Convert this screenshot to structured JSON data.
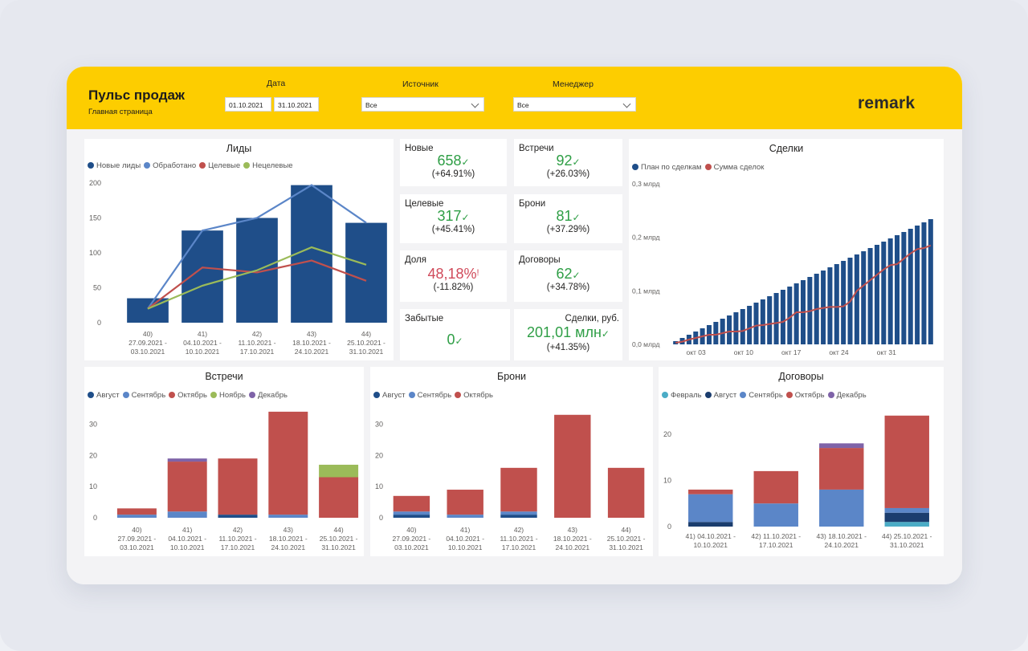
{
  "header": {
    "title": "Пульс продаж",
    "subtitle": "Главная страница",
    "logo": "remark",
    "filters": {
      "date_label": "Дата",
      "date_from": "01.10.2021",
      "date_to": "31.10.2021",
      "source_label": "Источник",
      "source_value": "Все",
      "manager_label": "Менеджер",
      "manager_value": "Все"
    }
  },
  "colors": {
    "navy": "#1f4e89",
    "blue": "#5b86c8",
    "red": "#c0504d",
    "green": "#9bbb59",
    "purple": "#7f63a8",
    "teal": "#4bacc6",
    "darknavy": "#1b3d6e",
    "kpi_green": "#2e9e45",
    "kpi_red": "#d04a5a"
  },
  "kpis": [
    {
      "label": "Новые",
      "value": "658",
      "delta": "(+64.91%)",
      "status": "good"
    },
    {
      "label": "Встречи",
      "value": "92",
      "delta": "(+26.03%)",
      "status": "good"
    },
    {
      "label": "Целевые",
      "value": "317",
      "delta": "(+45.41%)",
      "status": "good"
    },
    {
      "label": "Брони",
      "value": "81",
      "delta": "(+37.29%)",
      "status": "good"
    },
    {
      "label": "Доля",
      "value": "48,18%",
      "delta": "(-11.82%)",
      "status": "bad"
    },
    {
      "label": "Договоры",
      "value": "62",
      "delta": "(+34.78%)",
      "status": "good"
    },
    {
      "label": "Забытые",
      "value": "0",
      "delta": "",
      "status": "good"
    },
    {
      "label": "Сделки, руб.",
      "value": "201,01 млн",
      "delta": "(+41.35%)",
      "status": "good"
    }
  ],
  "chart_data": [
    {
      "id": "leads",
      "type": "bar",
      "title": "Лиды",
      "categories": [
        "40) 27.09.2021 - 03.10.2021",
        "41) 04.10.2021 - 10.10.2021",
        "42) 11.10.2021 - 17.10.2021",
        "43) 18.10.2021 - 24.10.2021",
        "44) 25.10.2021 - 31.10.2021"
      ],
      "category_lines": [
        [
          "40)",
          "27.09.2021 -",
          "03.10.2021"
        ],
        [
          "41)",
          "04.10.2021 -",
          "10.10.2021"
        ],
        [
          "42)",
          "11.10.2021 -",
          "17.10.2021"
        ],
        [
          "43)",
          "18.10.2021 -",
          "24.10.2021"
        ],
        [
          "44)",
          "25.10.2021 -",
          "31.10.2021"
        ]
      ],
      "series": [
        {
          "name": "Новые лиды",
          "kind": "bar",
          "color": "#1f4e89",
          "values": [
            35,
            132,
            150,
            197,
            143
          ]
        },
        {
          "name": "Обработано",
          "kind": "line",
          "color": "#5b86c8",
          "values": [
            20,
            132,
            150,
            197,
            143
          ]
        },
        {
          "name": "Целевые",
          "kind": "line",
          "color": "#c0504d",
          "values": [
            20,
            79,
            72,
            89,
            60
          ]
        },
        {
          "name": "Нецелевые",
          "kind": "line",
          "color": "#9bbb59",
          "values": [
            20,
            53,
            75,
            108,
            83
          ]
        }
      ],
      "yticks": [
        "200",
        "150",
        "100",
        "50",
        "0"
      ],
      "ylim": [
        0,
        200
      ],
      "legend": "top-left"
    },
    {
      "id": "deals",
      "type": "bar",
      "title": "Сделки",
      "series": [
        {
          "name": "План по сделкам",
          "kind": "bar",
          "color": "#1f4e89",
          "values": [
            6,
            12,
            18,
            24,
            30,
            36,
            42,
            48,
            54,
            60,
            66,
            72,
            78,
            84,
            90,
            96,
            102,
            108,
            114,
            120,
            126,
            132,
            138,
            144,
            150,
            156,
            162,
            168,
            174,
            180,
            186,
            192,
            198,
            204,
            210,
            216,
            222,
            228,
            234
          ]
        },
        {
          "name": "Сумма сделок",
          "kind": "line",
          "color": "#c0504d",
          "values": [
            3,
            5,
            9,
            12,
            15,
            18,
            18,
            21,
            24,
            24,
            25,
            30,
            35,
            36,
            38,
            40,
            42,
            50,
            60,
            60,
            62,
            66,
            68,
            70,
            70,
            71,
            80,
            100,
            110,
            120,
            130,
            140,
            148,
            150,
            160,
            170,
            178,
            180,
            185
          ]
        },
        {
          "name": "",
          "kind": "unused",
          "color": "#1f4e89",
          "values": []
        }
      ],
      "yticks": [
        "0,3 млрд",
        "0,2 млрд",
        "0,1 млрд",
        "0,0 млрд"
      ],
      "ylim": [
        0,
        300
      ],
      "xticks": [
        "окт 03",
        "окт 10",
        "окт 17",
        "окт 24",
        "окт 31"
      ],
      "legend": "top-left"
    },
    {
      "id": "meetings",
      "type": "bar",
      "title": "Встречи",
      "stacked": true,
      "category_lines": [
        [
          "40)",
          "27.09.2021 -",
          "03.10.2021"
        ],
        [
          "41)",
          "04.10.2021 -",
          "10.10.2021"
        ],
        [
          "42)",
          "11.10.2021 -",
          "17.10.2021"
        ],
        [
          "43)",
          "18.10.2021 -",
          "24.10.2021"
        ],
        [
          "44)",
          "25.10.2021 -",
          "31.10.2021"
        ]
      ],
      "series": [
        {
          "name": "Август",
          "color": "#1f4e89",
          "values": [
            0,
            0,
            1,
            0,
            0
          ]
        },
        {
          "name": "Сентябрь",
          "color": "#5b86c8",
          "values": [
            1,
            2,
            0,
            1,
            0
          ]
        },
        {
          "name": "Октябрь",
          "color": "#c0504d",
          "values": [
            2,
            16,
            18,
            33,
            13
          ]
        },
        {
          "name": "Ноябрь",
          "color": "#9bbb59",
          "values": [
            0,
            0,
            0,
            0,
            4
          ]
        },
        {
          "name": "Декабрь",
          "color": "#7f63a8",
          "values": [
            0,
            1,
            0,
            0,
            0
          ]
        }
      ],
      "yticks": [
        "30",
        "20",
        "10",
        "0"
      ],
      "ylim": [
        0,
        35
      ],
      "legend": "top-left"
    },
    {
      "id": "bookings",
      "type": "bar",
      "title": "Брони",
      "stacked": true,
      "category_lines": [
        [
          "40)",
          "27.09.2021 -",
          "03.10.2021"
        ],
        [
          "41)",
          "04.10.2021 -",
          "10.10.2021"
        ],
        [
          "42)",
          "11.10.2021 -",
          "17.10.2021"
        ],
        [
          "43)",
          "18.10.2021 -",
          "24.10.2021"
        ],
        [
          "44)",
          "25.10.2021 -",
          "31.10.2021"
        ]
      ],
      "series": [
        {
          "name": "Август",
          "color": "#1f4e89",
          "values": [
            1,
            0,
            1,
            0,
            0
          ]
        },
        {
          "name": "Сентябрь",
          "color": "#5b86c8",
          "values": [
            1,
            1,
            1,
            0,
            0
          ]
        },
        {
          "name": "Октябрь",
          "color": "#c0504d",
          "values": [
            5,
            8,
            14,
            33,
            16
          ]
        }
      ],
      "yticks": [
        "30",
        "20",
        "10",
        "0"
      ],
      "ylim": [
        0,
        35
      ],
      "legend": "top-left"
    },
    {
      "id": "contracts",
      "type": "bar",
      "title": "Договоры",
      "stacked": true,
      "category_lines": [
        [
          "41) 04.10.2021 -",
          "10.10.2021"
        ],
        [
          "42) 11.10.2021 -",
          "17.10.2021"
        ],
        [
          "43) 18.10.2021 -",
          "24.10.2021"
        ],
        [
          "44) 25.10.2021 -",
          "31.10.2021"
        ]
      ],
      "series": [
        {
          "name": "Февраль",
          "color": "#4bacc6",
          "values": [
            0,
            0,
            0,
            1
          ]
        },
        {
          "name": "Август",
          "color": "#1b3d6e",
          "values": [
            1,
            0,
            0,
            2
          ]
        },
        {
          "name": "Сентябрь",
          "color": "#5b86c8",
          "values": [
            6,
            5,
            8,
            1
          ]
        },
        {
          "name": "Октябрь",
          "color": "#c0504d",
          "values": [
            1,
            7,
            9,
            20
          ]
        },
        {
          "name": "Декабрь",
          "color": "#7f63a8",
          "values": [
            0,
            0,
            1,
            0
          ]
        }
      ],
      "yticks": [
        "20",
        "10",
        "0"
      ],
      "ylim": [
        0,
        25
      ],
      "legend": "top-left"
    }
  ]
}
